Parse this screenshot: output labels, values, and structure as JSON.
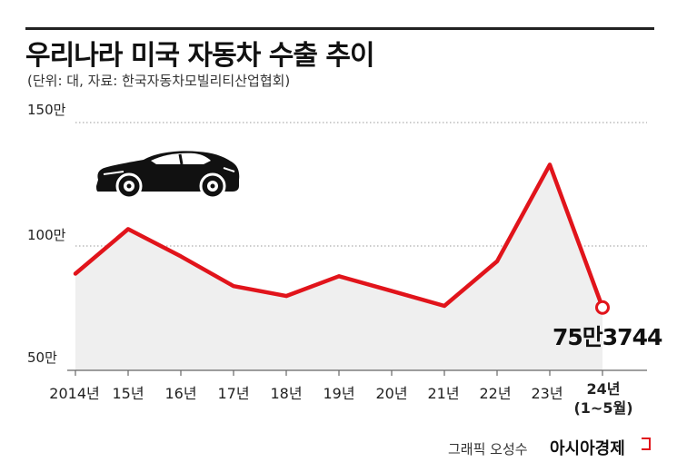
{
  "title": "우리나라 미국 자동차 수출 추이",
  "subtitle": "(단위: 대, 자료: 한국자동차모빌리티산업협회)",
  "credit": "그래픽 오성수",
  "brand": "아시아경제",
  "icons": {
    "car": "sports-car-icon"
  },
  "colors": {
    "line": "#e1141b",
    "area": "#efefef",
    "grid": "#999999"
  },
  "chart_data": {
    "type": "area",
    "title": "우리나라 미국 자동차 수출 추이",
    "xlabel": "",
    "ylabel": "",
    "y_unit": "대",
    "ylim": [
      50,
      150
    ],
    "y_ticks": [
      {
        "value": 150,
        "label": "150만"
      },
      {
        "value": 100,
        "label": "100만"
      },
      {
        "value": 50,
        "label": "50만"
      }
    ],
    "categories": [
      "2014년",
      "15년",
      "16년",
      "17년",
      "18년",
      "19년",
      "20년",
      "21년",
      "22년",
      "23년",
      "24년"
    ],
    "last_category_note": "(1~5월)",
    "values": [
      89,
      107,
      96,
      84,
      80,
      88,
      82,
      76,
      94,
      133,
      75.3744
    ],
    "annotations": [
      {
        "category": "24년",
        "label": "75만3744"
      }
    ],
    "grid": true,
    "legend": "none"
  }
}
